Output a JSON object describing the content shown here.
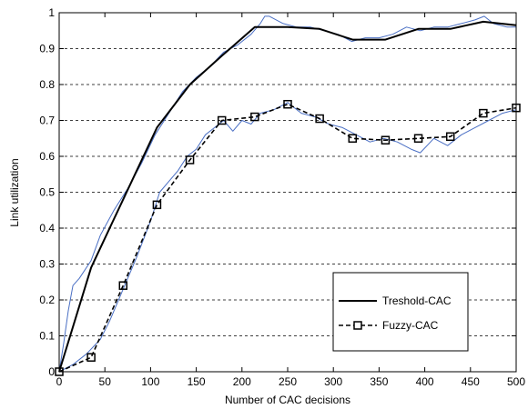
{
  "chart_data": {
    "type": "line",
    "title": "",
    "xlabel": "Number of CAC decisions",
    "ylabel": "Link utilization",
    "xlim": [
      0,
      500
    ],
    "ylim": [
      0,
      1
    ],
    "xticks": [
      0,
      50,
      100,
      150,
      200,
      250,
      300,
      350,
      400,
      450,
      500
    ],
    "yticks": [
      0,
      0.1,
      0.2,
      0.3,
      0.4,
      0.5,
      0.6,
      0.7,
      0.8,
      0.9,
      1
    ],
    "xtick_labels": [
      "0",
      "50",
      "100",
      "150",
      "200",
      "250",
      "300",
      "350",
      "400",
      "450",
      "500"
    ],
    "ytick_labels": [
      "0",
      "0.1",
      "0.2",
      "0.3",
      "0.4",
      "0.5",
      "0.6",
      "0.7",
      "0.8",
      "0.9",
      "1"
    ],
    "grid": "horizontal dashed",
    "legend_position": "bottom-right",
    "colors": {
      "raw": "#4a6fc4",
      "black": "#000000"
    },
    "series": [
      {
        "name": "Treshold-CAC",
        "style": "solid",
        "x": [
          0,
          35,
          70,
          107,
          143,
          178,
          214,
          250,
          285,
          321,
          357,
          393,
          428,
          464,
          500
        ],
        "y": [
          0.0,
          0.29,
          0.48,
          0.68,
          0.8,
          0.88,
          0.96,
          0.96,
          0.955,
          0.925,
          0.925,
          0.955,
          0.955,
          0.975,
          0.965
        ]
      },
      {
        "name": "Fuzzy-CAC",
        "style": "dashed",
        "marker": "square",
        "x": [
          0,
          35,
          70,
          107,
          143,
          178,
          214,
          250,
          285,
          321,
          357,
          393,
          428,
          464,
          500
        ],
        "y": [
          0.0,
          0.04,
          0.24,
          0.465,
          0.59,
          0.7,
          0.71,
          0.745,
          0.705,
          0.65,
          0.645,
          0.65,
          0.655,
          0.72,
          0.735
        ]
      },
      {
        "style": "raw",
        "x": [
          0,
          5,
          10,
          15,
          22,
          35,
          45,
          60,
          75,
          90,
          105,
          120,
          135,
          150,
          165,
          180,
          195,
          210,
          220,
          225,
          230,
          245,
          260,
          275,
          290,
          305,
          320,
          335,
          350,
          365,
          380,
          395,
          410,
          425,
          440,
          455,
          465,
          475,
          490,
          500
        ],
        "y": [
          0.0,
          0.08,
          0.17,
          0.24,
          0.26,
          0.31,
          0.38,
          0.45,
          0.51,
          0.58,
          0.66,
          0.72,
          0.78,
          0.82,
          0.85,
          0.89,
          0.91,
          0.94,
          0.97,
          0.99,
          0.99,
          0.97,
          0.96,
          0.96,
          0.95,
          0.94,
          0.92,
          0.93,
          0.93,
          0.94,
          0.96,
          0.95,
          0.96,
          0.96,
          0.97,
          0.98,
          0.99,
          0.97,
          0.96,
          0.96
        ]
      },
      {
        "style": "raw",
        "x": [
          0,
          15,
          30,
          45,
          55,
          70,
          85,
          100,
          110,
          120,
          130,
          140,
          150,
          160,
          170,
          180,
          190,
          200,
          210,
          220,
          235,
          250,
          265,
          280,
          295,
          310,
          325,
          340,
          355,
          370,
          385,
          395,
          410,
          425,
          440,
          455,
          470,
          485,
          500
        ],
        "y": [
          0.0,
          0.02,
          0.05,
          0.09,
          0.14,
          0.23,
          0.32,
          0.42,
          0.5,
          0.53,
          0.56,
          0.6,
          0.62,
          0.66,
          0.68,
          0.7,
          0.67,
          0.7,
          0.69,
          0.72,
          0.73,
          0.75,
          0.72,
          0.71,
          0.69,
          0.68,
          0.66,
          0.64,
          0.65,
          0.64,
          0.62,
          0.61,
          0.65,
          0.63,
          0.66,
          0.68,
          0.7,
          0.72,
          0.73
        ]
      }
    ]
  }
}
